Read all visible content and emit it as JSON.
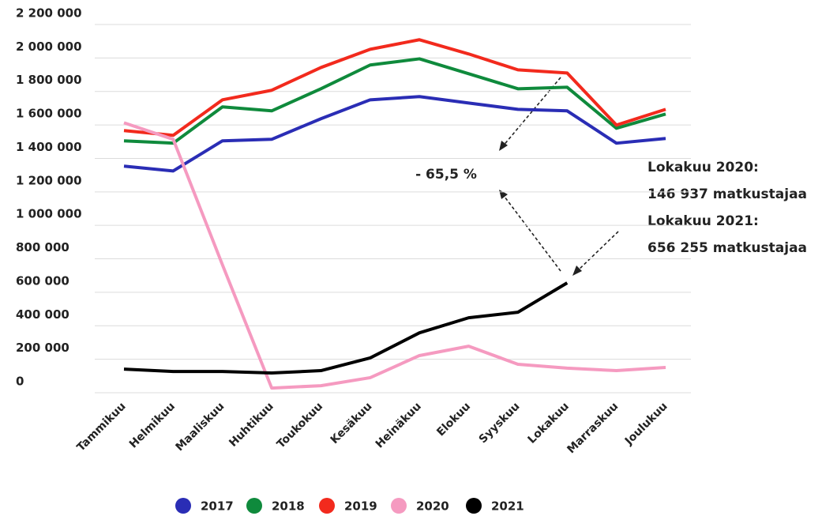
{
  "chart_data": {
    "type": "line",
    "categories": [
      "Tammikuu",
      "Helmikuu",
      "Maaliskuu",
      "Huhtikuu",
      "Toukokuu",
      "Kesäkuu",
      "Heinäkuu",
      "Elokuu",
      "Syyskuu",
      "Lokakuu",
      "Marraskuu",
      "Joulukuu"
    ],
    "series": [
      {
        "name": "2017",
        "color": "#2a2db5",
        "values": [
          1354000,
          1325000,
          1505000,
          1514000,
          1637000,
          1750000,
          1769000,
          1731000,
          1693000,
          1684000,
          1491000,
          1519000
        ]
      },
      {
        "name": "2018",
        "color": "#0f8a3c",
        "values": [
          1505000,
          1491000,
          1708000,
          1684000,
          1816000,
          1958000,
          1995000,
          1906000,
          1816000,
          1825000,
          1580000,
          1665000
        ]
      },
      {
        "name": "2019",
        "color": "#f22a1d",
        "values": [
          1566000,
          1538000,
          1750000,
          1807000,
          1943000,
          2052000,
          2109000,
          2024000,
          1929000,
          1910000,
          1599000,
          1693000
        ]
      },
      {
        "name": "2020",
        "color": "#f59ac0",
        "values": [
          1613000,
          1514000,
          764000,
          28000,
          42000,
          90000,
          222000,
          278000,
          170000,
          146937,
          132000,
          151000
        ]
      },
      {
        "name": "2021",
        "color": "#000000",
        "values": [
          141000,
          127000,
          127000,
          118000,
          132000,
          208000,
          358000,
          448000,
          481000,
          656255,
          null,
          null
        ]
      }
    ],
    "ylim": [
      0,
      2200000
    ],
    "yticks": [
      0,
      {
        "value": 200000,
        "label": "200 000"
      },
      {
        "value": 400000,
        "label": "400 000"
      },
      {
        "value": 600000,
        "label": "600 000"
      },
      {
        "value": 800000,
        "label": "800 000"
      },
      {
        "value": 1000000,
        "label": "1 000 000"
      },
      {
        "value": 1200000,
        "label": "1 200 000"
      },
      {
        "value": 1400000,
        "label": "1 400 000"
      },
      {
        "value": 1600000,
        "label": "1 600 000"
      },
      {
        "value": 1800000,
        "label": "1 800 000"
      },
      {
        "value": 2000000,
        "label": "2 000 000"
      },
      {
        "value": 2200000,
        "label": "2 200 000"
      }
    ],
    "grid": true,
    "legend": "bottom",
    "annotations": [
      "- 65,5 %",
      "Lokakuu 2020:",
      "146 937 matkustajaa",
      "Lokakuu 2021:",
      "656 255 matkustajaa"
    ]
  }
}
